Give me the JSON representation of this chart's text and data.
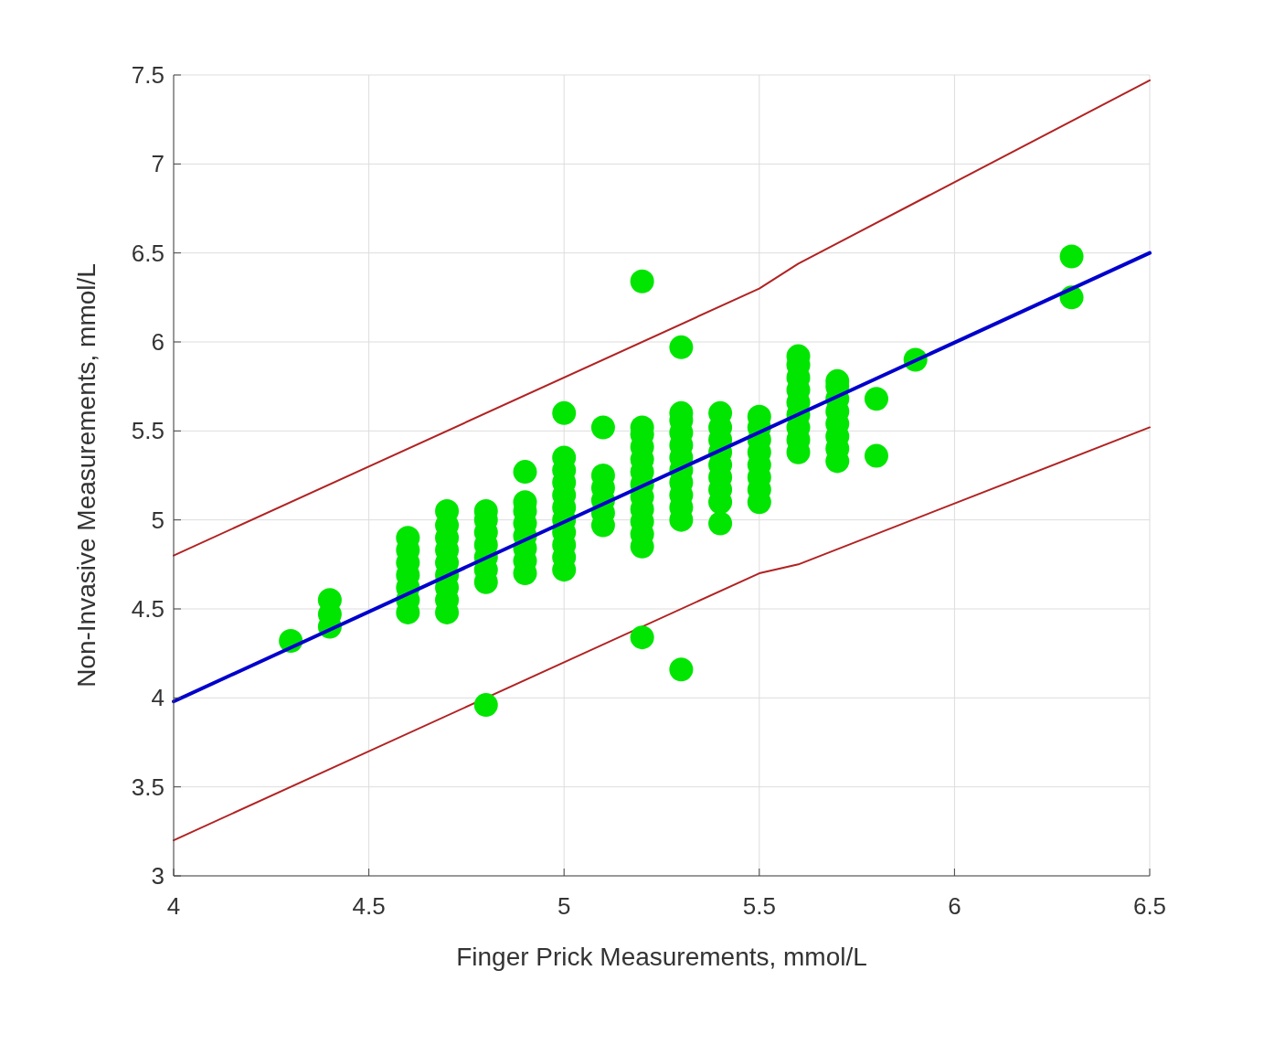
{
  "chart_data": {
    "type": "scatter",
    "xlabel": "Finger Prick Measurements, mmol/L",
    "ylabel": "Non-Invasive Measurements, mmol/L",
    "xlim": [
      4,
      6.5
    ],
    "ylim": [
      3,
      7.5
    ],
    "xticks": [
      4,
      4.5,
      5,
      5.5,
      6,
      6.5
    ],
    "yticks": [
      3,
      3.5,
      4,
      4.5,
      5,
      5.5,
      6,
      6.5,
      7,
      7.5
    ],
    "grid": true,
    "series": [
      {
        "type": "line",
        "color": "#b22222",
        "marker": "none",
        "x": [
          4,
          5.5,
          5.6,
          6.5
        ],
        "values": [
          4.8,
          6.3,
          6.44,
          7.47
        ]
      },
      {
        "type": "line",
        "color": "#b22222",
        "marker": "none",
        "x": [
          4,
          5.5,
          5.6,
          6.5
        ],
        "values": [
          3.2,
          4.7,
          4.75,
          5.52
        ]
      },
      {
        "type": "scatter",
        "color": "#00e600",
        "marker": "circle",
        "x": [
          4.3,
          4.4,
          4.4,
          4.4,
          4.6,
          4.6,
          4.6,
          4.6,
          4.6,
          4.6,
          4.6,
          4.7,
          4.7,
          4.7,
          4.7,
          4.7,
          4.7,
          4.7,
          4.7,
          4.7,
          4.8,
          4.8,
          4.8,
          4.8,
          4.8,
          4.8,
          4.8,
          4.8,
          4.9,
          4.9,
          4.9,
          4.9,
          4.9,
          4.9,
          4.9,
          4.9,
          5,
          5,
          5,
          5,
          5,
          5,
          5,
          5,
          5,
          5,
          5,
          5.1,
          5.1,
          5.1,
          5.1,
          5.1,
          5.1,
          5.2,
          5.2,
          5.2,
          5.2,
          5.2,
          5.2,
          5.2,
          5.2,
          5.2,
          5.2,
          5.2,
          5.2,
          5.2,
          5.3,
          5.3,
          5.3,
          5.3,
          5.3,
          5.3,
          5.3,
          5.3,
          5.3,
          5.3,
          5.3,
          5.3,
          5.4,
          5.4,
          5.4,
          5.4,
          5.4,
          5.4,
          5.4,
          5.4,
          5.4,
          5.5,
          5.5,
          5.5,
          5.5,
          5.5,
          5.5,
          5.5,
          5.5,
          5.6,
          5.6,
          5.6,
          5.6,
          5.6,
          5.6,
          5.6,
          5.6,
          5.6,
          5.7,
          5.7,
          5.7,
          5.7,
          5.7,
          5.7,
          5.7,
          5.7,
          5.8,
          5.8,
          5.9,
          6.3,
          6.3
        ],
        "values": [
          4.32,
          4.4,
          4.47,
          4.55,
          4.48,
          4.55,
          4.62,
          4.69,
          4.76,
          4.83,
          4.9,
          4.48,
          4.55,
          4.62,
          4.69,
          4.76,
          4.83,
          4.9,
          4.97,
          5.05,
          3.96,
          4.65,
          4.72,
          4.79,
          4.86,
          4.93,
          5.0,
          5.05,
          4.7,
          4.77,
          4.84,
          4.91,
          4.98,
          5.05,
          5.1,
          5.27,
          4.72,
          4.79,
          4.86,
          4.93,
          5.0,
          5.07,
          5.14,
          5.21,
          5.28,
          5.35,
          5.6,
          4.97,
          5.04,
          5.11,
          5.18,
          5.25,
          5.52,
          4.34,
          4.85,
          4.92,
          4.99,
          5.06,
          5.13,
          5.2,
          5.27,
          5.34,
          5.41,
          5.48,
          5.52,
          6.34,
          4.16,
          5.0,
          5.07,
          5.14,
          5.21,
          5.28,
          5.35,
          5.42,
          5.49,
          5.56,
          5.6,
          5.97,
          4.98,
          5.1,
          5.17,
          5.24,
          5.31,
          5.38,
          5.45,
          5.52,
          5.6,
          5.1,
          5.17,
          5.24,
          5.31,
          5.38,
          5.45,
          5.52,
          5.58,
          5.38,
          5.45,
          5.52,
          5.59,
          5.66,
          5.73,
          5.8,
          5.87,
          5.92,
          5.33,
          5.4,
          5.47,
          5.54,
          5.61,
          5.68,
          5.75,
          5.78,
          5.36,
          5.68,
          5.9,
          6.25,
          6.48
        ]
      },
      {
        "type": "line",
        "color": "#0000cc",
        "marker": "none",
        "x": [
          4,
          6.5
        ],
        "values": [
          3.98,
          6.5
        ]
      }
    ]
  }
}
